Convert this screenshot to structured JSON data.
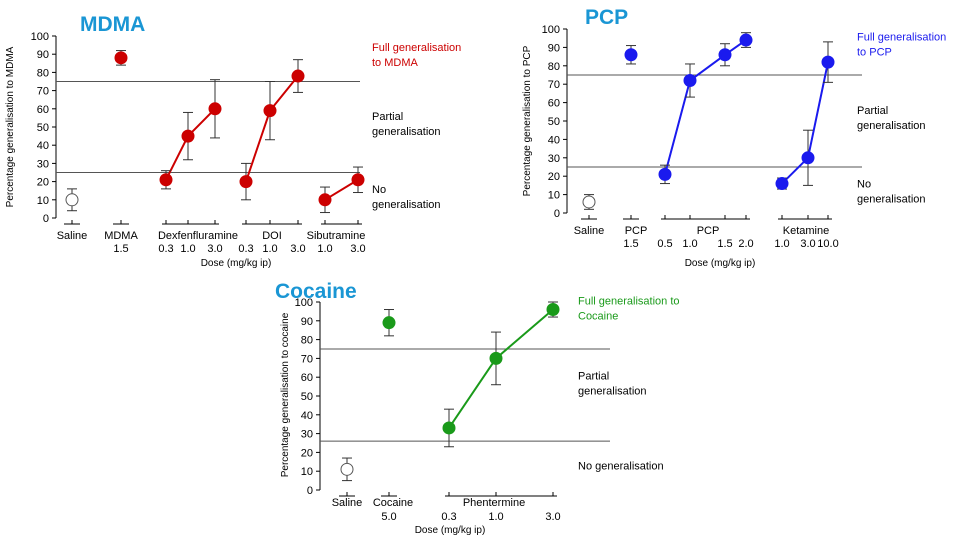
{
  "colors": {
    "mdma": "#cc0000",
    "pcp": "#1a1aee",
    "cocaine": "#1a9a1a",
    "title": "#1a96d4",
    "axis": "#000000",
    "threshold": "#555555"
  },
  "chart_data": [
    {
      "id": "mdma",
      "type": "scatter",
      "title": "MDMA",
      "xlabel": "Dose (mg/kg ip)",
      "ylabel": "Percentage generalisation to MDMA",
      "ylim": [
        0,
        100
      ],
      "yticks": [
        0,
        10,
        20,
        30,
        40,
        50,
        60,
        70,
        80,
        90,
        100
      ],
      "thresholds": [
        75,
        25
      ],
      "annotations": [
        {
          "text": "Full generalisation to MDMA",
          "lines": [
            "Full generalisation",
            "to MDMA"
          ],
          "colored": true,
          "y": 88
        },
        {
          "text": "Partial generalisation",
          "lines": [
            "Partial",
            "generalisation"
          ],
          "colored": false,
          "y": 50
        },
        {
          "text": "No generalisation",
          "lines": [
            "No",
            "generalisation"
          ],
          "colored": false,
          "y": 10
        }
      ],
      "groups": [
        {
          "name": "Saline",
          "doses": [
            ""
          ],
          "values": [
            10
          ],
          "errors": [
            6
          ],
          "fill": "open",
          "connected": false
        },
        {
          "name": "MDMA",
          "doses": [
            "1.5"
          ],
          "values": [
            88
          ],
          "errors": [
            4
          ],
          "fill": "filled",
          "connected": false
        },
        {
          "name": "Dexfenfluramine",
          "doses": [
            "0.3",
            "1.0",
            "3.0"
          ],
          "values": [
            21,
            45,
            60
          ],
          "errors": [
            5,
            13,
            16
          ],
          "fill": "filled",
          "connected": true
        },
        {
          "name": "DOI",
          "doses": [
            "0.3",
            "1.0",
            "3.0"
          ],
          "values": [
            20,
            59,
            78
          ],
          "errors": [
            10,
            16,
            9
          ],
          "fill": "filled",
          "connected": true
        },
        {
          "name": "Sibutramine",
          "doses": [
            "1.0",
            "3.0"
          ],
          "values": [
            10,
            21
          ],
          "errors": [
            7,
            7
          ],
          "fill": "filled",
          "connected": true
        }
      ]
    },
    {
      "id": "pcp",
      "type": "scatter",
      "title": "PCP",
      "xlabel": "Dose (mg/kg ip)",
      "ylabel": "Percentage generalisation to PCP",
      "ylim": [
        0,
        100
      ],
      "yticks": [
        0,
        10,
        20,
        30,
        40,
        50,
        60,
        70,
        80,
        90,
        100
      ],
      "thresholds": [
        75,
        25
      ],
      "annotations": [
        {
          "text": "Full generalisation to PCP",
          "lines": [
            "Full generalisation",
            "to PCP"
          ],
          "colored": true,
          "y": 90
        },
        {
          "text": "Partial generalisation",
          "lines": [
            "Partial",
            "generalisation"
          ],
          "colored": false,
          "y": 50
        },
        {
          "text": "No generalisation",
          "lines": [
            "No",
            "generalisation"
          ],
          "colored": false,
          "y": 10
        }
      ],
      "groups": [
        {
          "name": "Saline",
          "doses": [
            ""
          ],
          "values": [
            6
          ],
          "errors": [
            4
          ],
          "fill": "open",
          "connected": false
        },
        {
          "name": "PCP",
          "doses": [
            "1.5"
          ],
          "values": [
            86
          ],
          "errors": [
            5
          ],
          "fill": "filled",
          "connected": false
        },
        {
          "name": "PCP",
          "doses": [
            "0.5",
            "1.0",
            "1.5",
            "2.0"
          ],
          "values": [
            21,
            72,
            86,
            94
          ],
          "errors": [
            5,
            9,
            6,
            4
          ],
          "fill": "filled",
          "connected": true
        },
        {
          "name": "Ketamine",
          "doses": [
            "1.0",
            "3.0",
            "10.0"
          ],
          "values": [
            16,
            30,
            82
          ],
          "errors": [
            3,
            15,
            11
          ],
          "fill": "filled",
          "connected": true
        }
      ]
    },
    {
      "id": "cocaine",
      "type": "scatter",
      "title": "Cocaine",
      "xlabel": "Dose (mg/kg ip)",
      "ylabel": "Percentage generalisation to cocaine",
      "ylim": [
        0,
        100
      ],
      "yticks": [
        0,
        10,
        20,
        30,
        40,
        50,
        60,
        70,
        80,
        90,
        100
      ],
      "thresholds": [
        75,
        26
      ],
      "annotations": [
        {
          "text": "Full generalisation to Cocaine",
          "lines": [
            "Full generalisation to",
            "Cocaine"
          ],
          "colored": true,
          "y": 95
        },
        {
          "text": "Partial generalisation",
          "lines": [
            "Partial",
            "generalisation"
          ],
          "colored": false,
          "y": 55
        },
        {
          "text": "No generalisation",
          "lines": [
            "No generalisation"
          ],
          "colored": false,
          "y": 11
        }
      ],
      "groups": [
        {
          "name": "Saline",
          "doses": [
            ""
          ],
          "values": [
            11
          ],
          "errors": [
            6
          ],
          "fill": "open",
          "connected": false
        },
        {
          "name": "Cocaine",
          "doses": [
            "5.0"
          ],
          "values": [
            89
          ],
          "errors": [
            7
          ],
          "fill": "filled",
          "connected": false
        },
        {
          "name": "Phentermine",
          "doses": [
            "0.3",
            "1.0",
            "3.0"
          ],
          "values": [
            33,
            70,
            96
          ],
          "errors": [
            10,
            14,
            4
          ],
          "fill": "filled",
          "connected": true
        }
      ]
    }
  ]
}
